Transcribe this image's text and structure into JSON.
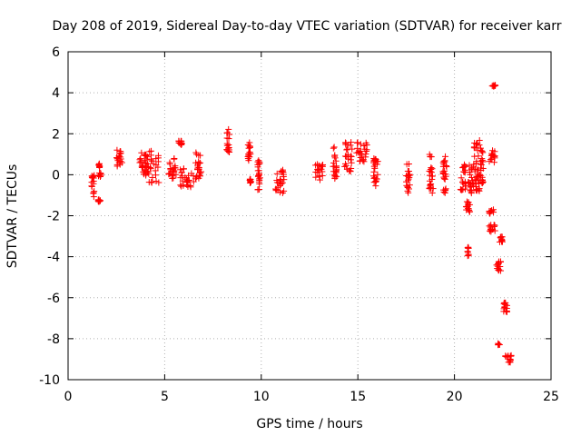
{
  "chart_data": {
    "type": "scatter",
    "title": "Day 208 of 2019, Sidereal Day-to-day VTEC variation (SDTVAR) for receiver karr",
    "xlabel": "GPS time / hours",
    "ylabel": "SDTVAR / TECUs",
    "xlim": [
      0,
      25
    ],
    "ylim": [
      -10,
      6
    ],
    "xticks": [
      0,
      5,
      10,
      15,
      20,
      25
    ],
    "yticks": [
      -10,
      -8,
      -6,
      -4,
      -2,
      0,
      2,
      4,
      6
    ],
    "grid": true,
    "marker": "+",
    "series": [
      {
        "name": "SDTVAR",
        "color": "#ff0000",
        "clusters": [
          {
            "x": [
              1.2,
              1.35
            ],
            "y": [
              -1.1,
              0.0
            ]
          },
          {
            "x": [
              1.55,
              1.7
            ],
            "y": [
              -1.4,
              -1.2
            ]
          },
          {
            "x": [
              1.55,
              1.7
            ],
            "y": [
              -0.1,
              0.6
            ]
          },
          {
            "x": [
              2.5,
              2.8
            ],
            "y": [
              0.3,
              1.3
            ]
          },
          {
            "x": [
              3.7,
              4.1
            ],
            "y": [
              0.0,
              1.1
            ]
          },
          {
            "x": [
              4.0,
              4.7
            ],
            "y": [
              -0.4,
              1.2
            ]
          },
          {
            "x": [
              5.2,
              5.6
            ],
            "y": [
              -0.3,
              0.9
            ]
          },
          {
            "x": [
              5.7,
              5.9
            ],
            "y": [
              1.4,
              1.65
            ]
          },
          {
            "x": [
              5.8,
              6.5
            ],
            "y": [
              -0.6,
              0.3
            ]
          },
          {
            "x": [
              6.6,
              6.9
            ],
            "y": [
              -0.3,
              1.1
            ]
          },
          {
            "x": [
              8.2,
              8.35
            ],
            "y": [
              1.1,
              2.3
            ]
          },
          {
            "x": [
              9.3,
              9.45
            ],
            "y": [
              0.6,
              1.7
            ]
          },
          {
            "x": [
              9.4,
              9.6
            ],
            "y": [
              -0.4,
              -0.2
            ]
          },
          {
            "x": [
              9.8,
              9.95
            ],
            "y": [
              -0.8,
              0.8
            ]
          },
          {
            "x": [
              10.7,
              11.2
            ],
            "y": [
              -0.9,
              0.3
            ]
          },
          {
            "x": [
              12.8,
              13.2
            ],
            "y": [
              -0.3,
              0.6
            ]
          },
          {
            "x": [
              13.7,
              13.9
            ],
            "y": [
              -0.2,
              1.4
            ]
          },
          {
            "x": [
              14.3,
              14.7
            ],
            "y": [
              0.1,
              1.6
            ]
          },
          {
            "x": [
              14.9,
              15.5
            ],
            "y": [
              0.5,
              1.7
            ]
          },
          {
            "x": [
              15.8,
              16.1
            ],
            "y": [
              -0.6,
              1.0
            ]
          },
          {
            "x": [
              17.5,
              17.7
            ],
            "y": [
              -0.9,
              0.6
            ]
          },
          {
            "x": [
              18.7,
              18.9
            ],
            "y": [
              -0.9,
              1.0
            ]
          },
          {
            "x": [
              19.4,
              19.6
            ],
            "y": [
              -0.9,
              0.9
            ]
          },
          {
            "x": [
              20.3,
              20.6
            ],
            "y": [
              -0.8,
              0.5
            ]
          },
          {
            "x": [
              20.6,
              20.8
            ],
            "y": [
              -1.9,
              -1.2
            ]
          },
          {
            "x": [
              20.65,
              20.75
            ],
            "y": [
              -4.0,
              -3.5
            ]
          },
          {
            "x": [
              20.7,
              21.0
            ],
            "y": [
              -0.9,
              0.6
            ]
          },
          {
            "x": [
              21.0,
              21.3
            ],
            "y": [
              -0.8,
              1.8
            ]
          },
          {
            "x": [
              21.3,
              21.5
            ],
            "y": [
              -0.5,
              1.3
            ]
          },
          {
            "x": [
              21.8,
              22.1
            ],
            "y": [
              0.6,
              1.2
            ]
          },
          {
            "x": [
              21.8,
              22.05
            ],
            "y": [
              -1.9,
              -1.7
            ]
          },
          {
            "x": [
              21.8,
              22.1
            ],
            "y": [
              -2.8,
              -2.4
            ]
          },
          {
            "x": [
              21.95,
              22.15
            ],
            "y": [
              4.3,
              4.4
            ]
          },
          {
            "x": [
              22.1,
              22.4
            ],
            "y": [
              -4.7,
              -4.2
            ]
          },
          {
            "x": [
              22.3,
              22.5
            ],
            "y": [
              -3.3,
              -3.0
            ]
          },
          {
            "x": [
              22.5,
              22.8
            ],
            "y": [
              -6.7,
              -6.2
            ]
          },
          {
            "x": [
              22.25,
              22.35
            ],
            "y": [
              -8.3,
              -8.2
            ]
          },
          {
            "x": [
              22.6,
              22.95
            ],
            "y": [
              -9.2,
              -8.8
            ]
          }
        ]
      }
    ]
  }
}
